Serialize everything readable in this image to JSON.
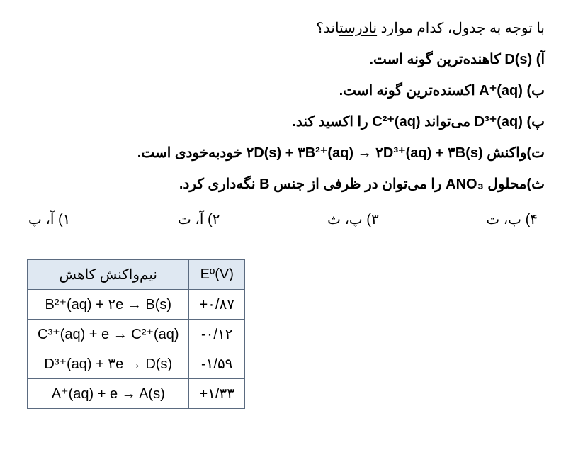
{
  "question": {
    "intro_pre": "با توجه به جدول، کدام موارد ",
    "intro_underlined": "نادرست",
    "intro_post": "اند؟"
  },
  "statements": [
    {
      "label": "آ)",
      "pre_formula": "",
      "formula": "D(s)",
      "post_formula": " کاهنده‌ترین گونه است."
    },
    {
      "label": "ب)",
      "pre_formula": "",
      "formula": "A⁺(aq)",
      "post_formula": " اکسنده‌ترین گونه است."
    },
    {
      "label": "پ)",
      "pre_formula": "",
      "formula": "D³⁺(aq)",
      "mid_text": " می‌تواند ",
      "formula2": "C²⁺(aq)",
      "post_formula": " را اکسید کند."
    },
    {
      "label": "ت)",
      "pre_formula": "واکنش ",
      "formula": "۲D(s) + ۳B²⁺(aq) → ۲D³⁺(aq) + ۳B(s)",
      "post_formula": " خودبه‌خودی است."
    },
    {
      "label": "ث)",
      "pre_formula": "محلول ",
      "formula": "ANO₃",
      "mid_text": " را می‌توان در ظرفی از جنس ",
      "formula2": "B",
      "post_formula": " نگه‌داری کرد."
    }
  ],
  "options": [
    {
      "num": "۱)",
      "text": "آ، پ"
    },
    {
      "num": "۲)",
      "text": "آ، ت"
    },
    {
      "num": "۳)",
      "text": "پ، ث"
    },
    {
      "num": "۴)",
      "text": "ب، ت"
    }
  ],
  "table": {
    "headers": {
      "reaction": "نیم‌واکنش کاهش",
      "potential": "Eº(V)"
    },
    "rows": [
      {
        "reaction": "B²⁺(aq) + ۲e → B(s)",
        "potential": "+۰/۸۷"
      },
      {
        "reaction": "C³⁺(aq) + e → C²⁺(aq)",
        "potential": "-۰/۱۲"
      },
      {
        "reaction": "D³⁺(aq) + ۳e → D(s)",
        "potential": "-۱/۵۹"
      },
      {
        "reaction": "A⁺(aq) + e → A(s)",
        "potential": "+۱/۳۳"
      }
    ]
  }
}
